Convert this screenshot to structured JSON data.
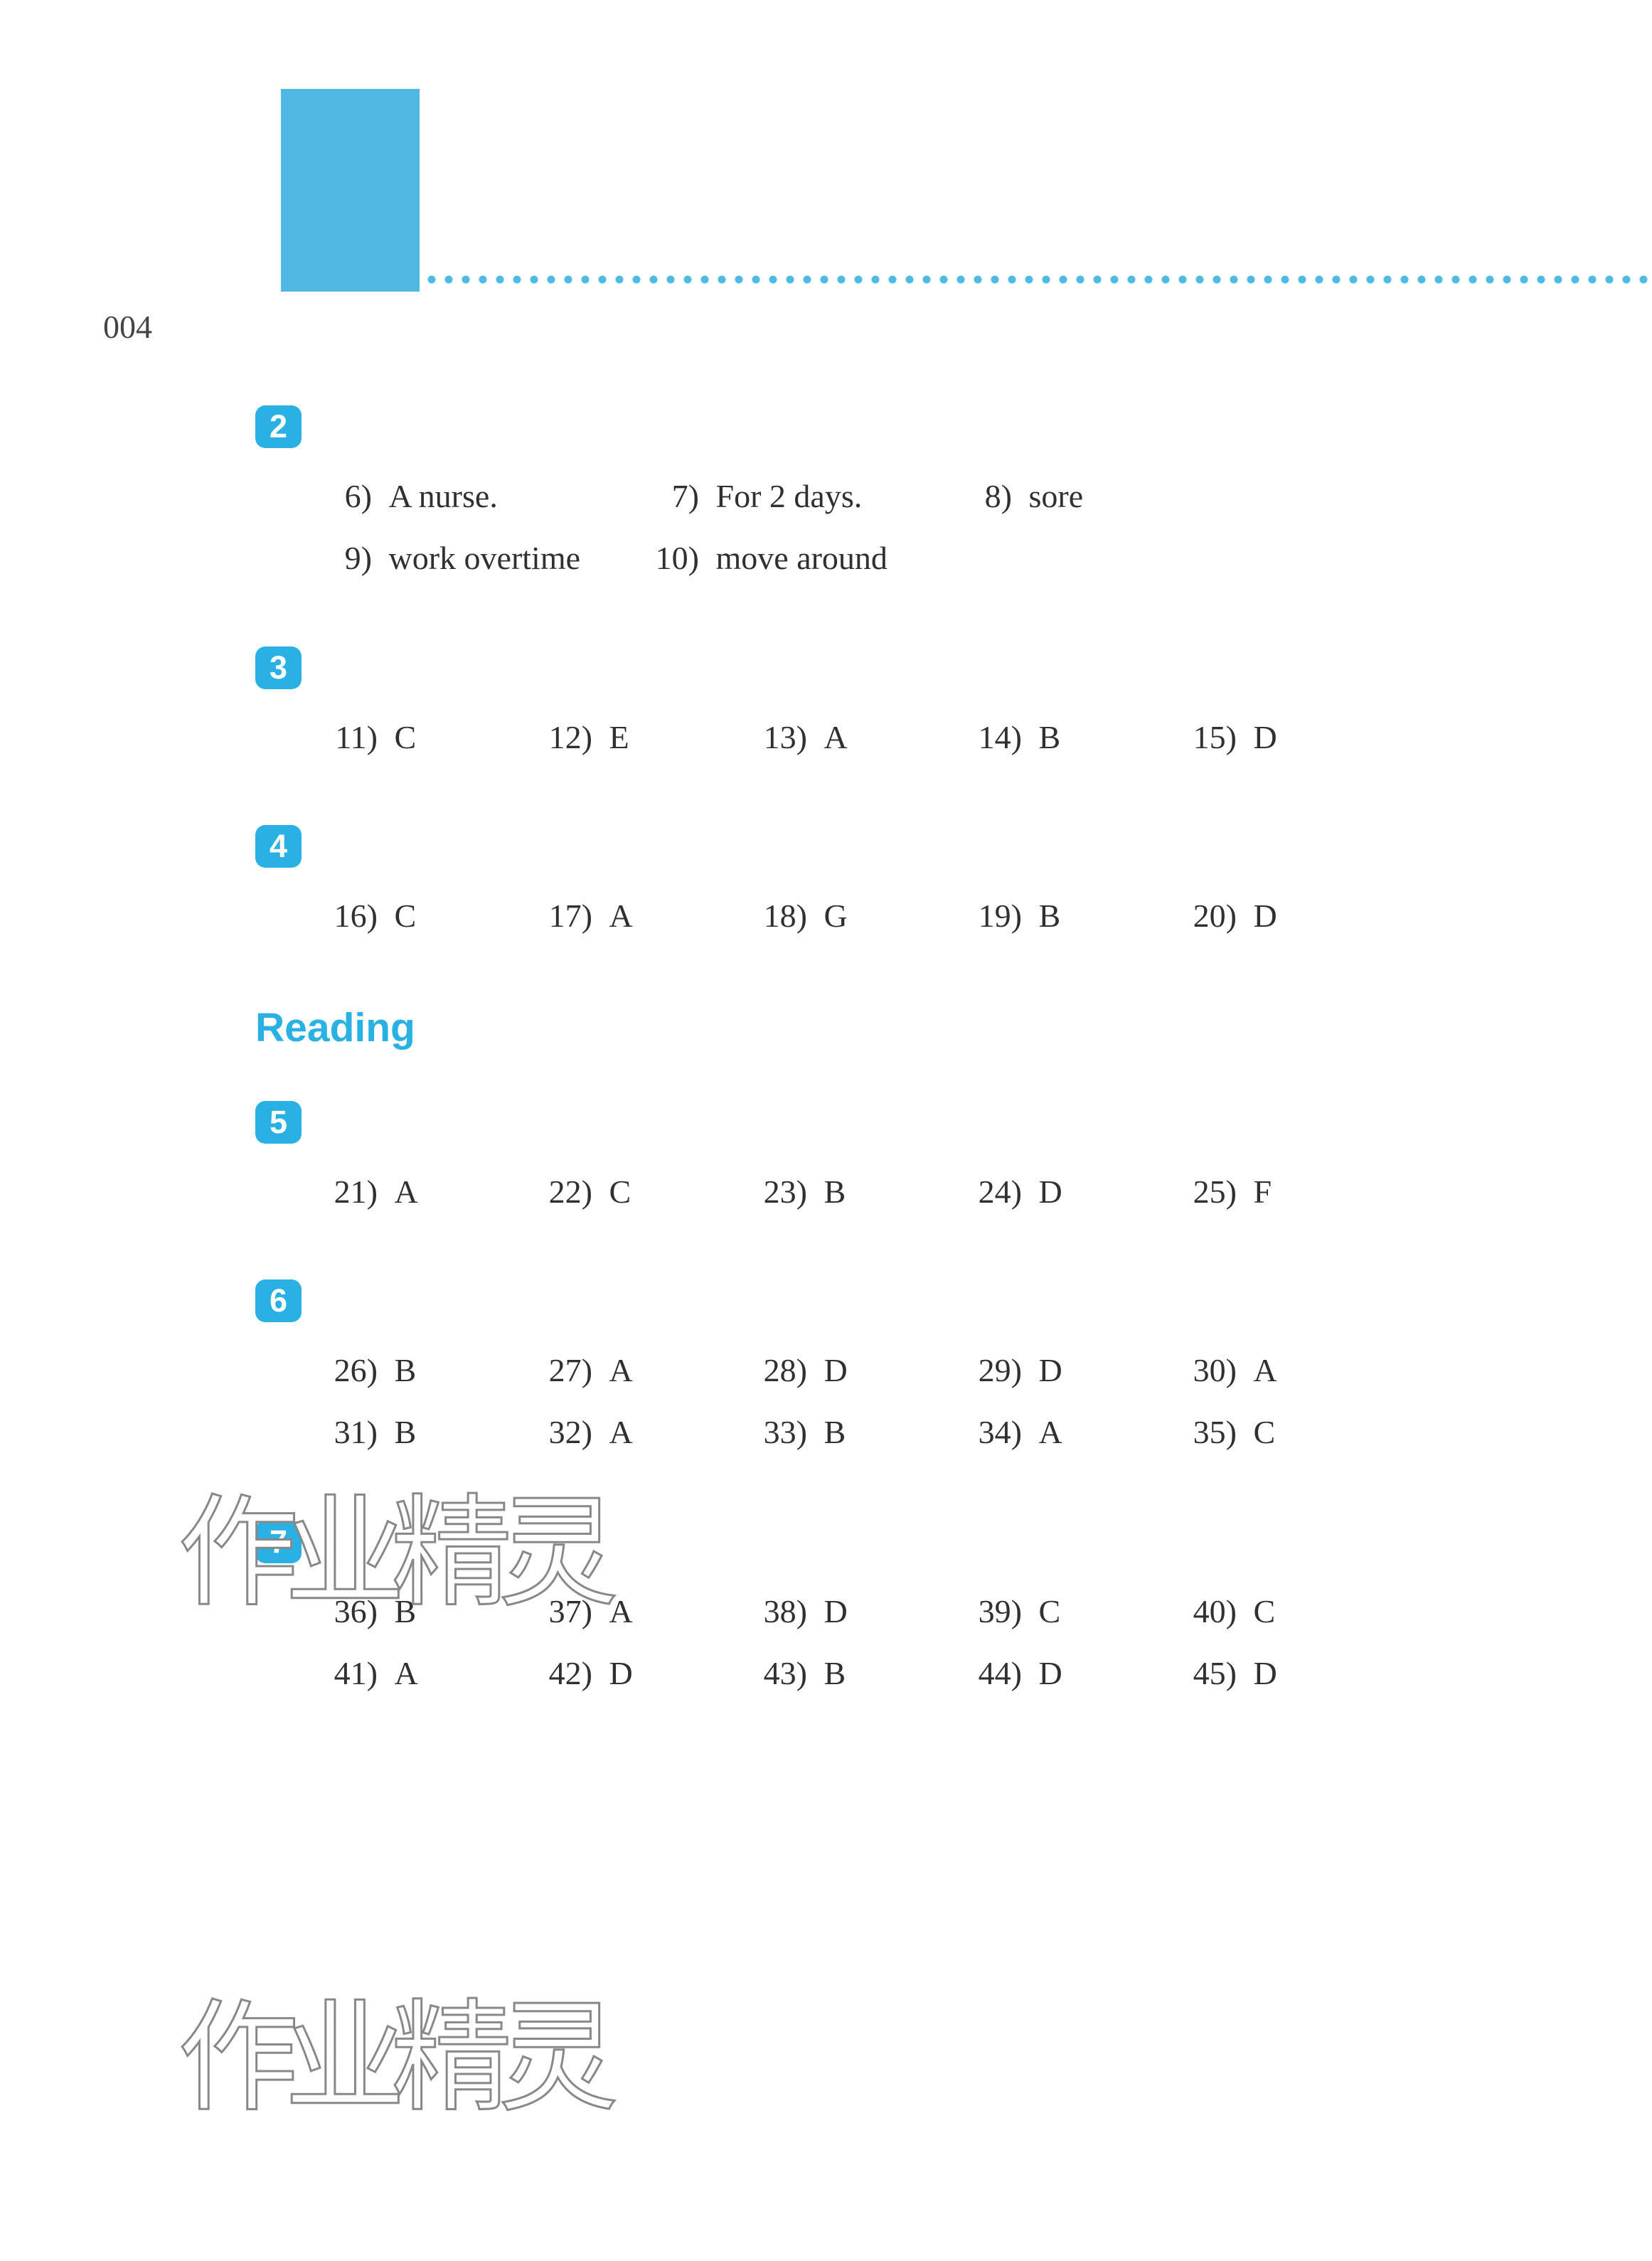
{
  "page_number": "004",
  "colors": {
    "accent": "#29b1e3",
    "tab": "#4fb9e4",
    "text": "#303030",
    "page_num": "#444444",
    "background": "#ffffff"
  },
  "sections": [
    {
      "badge": "2",
      "type": "text-answers",
      "rows": [
        [
          {
            "n": "6)",
            "t": "A nurse."
          },
          {
            "n": "7)",
            "t": "For 2 days."
          },
          {
            "n": "8)",
            "t": "sore"
          }
        ],
        [
          {
            "n": "9)",
            "t": "work overtime"
          },
          {
            "n": "10)",
            "t": "move around"
          }
        ]
      ]
    },
    {
      "badge": "3",
      "type": "letter-answers",
      "rows": [
        [
          {
            "n": "11)",
            "t": "C"
          },
          {
            "n": "12)",
            "t": "E"
          },
          {
            "n": "13)",
            "t": "A"
          },
          {
            "n": "14)",
            "t": "B"
          },
          {
            "n": "15)",
            "t": "D"
          }
        ]
      ]
    },
    {
      "badge": "4",
      "type": "letter-answers",
      "rows": [
        [
          {
            "n": "16)",
            "t": "C"
          },
          {
            "n": "17)",
            "t": "A"
          },
          {
            "n": "18)",
            "t": "G"
          },
          {
            "n": "19)",
            "t": "B"
          },
          {
            "n": "20)",
            "t": "D"
          }
        ]
      ]
    }
  ],
  "reading_heading": "Reading",
  "reading_sections": [
    {
      "badge": "5",
      "rows": [
        [
          {
            "n": "21)",
            "t": "A"
          },
          {
            "n": "22)",
            "t": "C"
          },
          {
            "n": "23)",
            "t": "B"
          },
          {
            "n": "24)",
            "t": "D"
          },
          {
            "n": "25)",
            "t": "F"
          }
        ]
      ]
    },
    {
      "badge": "6",
      "rows": [
        [
          {
            "n": "26)",
            "t": "B"
          },
          {
            "n": "27)",
            "t": "A"
          },
          {
            "n": "28)",
            "t": "D"
          },
          {
            "n": "29)",
            "t": "D"
          },
          {
            "n": "30)",
            "t": "A"
          }
        ],
        [
          {
            "n": "31)",
            "t": "B"
          },
          {
            "n": "32)",
            "t": "A"
          },
          {
            "n": "33)",
            "t": "B"
          },
          {
            "n": "34)",
            "t": "A"
          },
          {
            "n": "35)",
            "t": "C"
          }
        ]
      ]
    },
    {
      "badge": "7",
      "rows": [
        [
          {
            "n": "36)",
            "t": "B"
          },
          {
            "n": "37)",
            "t": "A"
          },
          {
            "n": "38)",
            "t": "D"
          },
          {
            "n": "39)",
            "t": "C"
          },
          {
            "n": "40)",
            "t": "C"
          }
        ],
        [
          {
            "n": "41)",
            "t": "A"
          },
          {
            "n": "42)",
            "t": "D"
          },
          {
            "n": "43)",
            "t": "B"
          },
          {
            "n": "44)",
            "t": "D"
          },
          {
            "n": "45)",
            "t": "D"
          }
        ]
      ]
    }
  ],
  "watermark_text": "作业精灵"
}
